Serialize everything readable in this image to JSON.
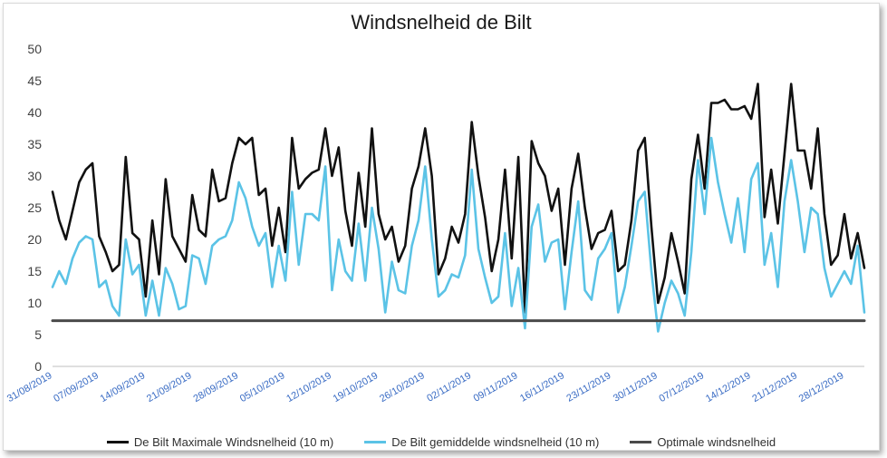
{
  "chart_data": {
    "type": "line",
    "title": "Windsnelheid de Bilt",
    "xlabel": "",
    "ylabel": "",
    "ylim": [
      0,
      50
    ],
    "yticks": [
      "0",
      "5",
      "10",
      "15",
      "20",
      "25",
      "30",
      "35",
      "40",
      "45",
      "50"
    ],
    "xticks": [
      "31/08/2019",
      "07/09/2019",
      "14/09/2019",
      "21/09/2019",
      "28/09/2019",
      "05/10/2019",
      "12/10/2019",
      "19/10/2019",
      "26/10/2019",
      "02/11/2019",
      "09/11/2019",
      "16/11/2019",
      "23/11/2019",
      "30/11/2019",
      "07/12/2019",
      "14/12/2019",
      "21/12/2019",
      "28/12/2019"
    ],
    "x_range": [
      "2019-08-31",
      "2019-12-31"
    ],
    "grid": false,
    "legend_position": "bottom",
    "series": [
      {
        "name": "De Bilt Maximale Windsnelheid (10 m)",
        "color": "#111111",
        "values": [
          27.5,
          23,
          20,
          24.5,
          29,
          31,
          32,
          20.5,
          18,
          15,
          16,
          33,
          21,
          20,
          11,
          23,
          14.5,
          29.5,
          20.5,
          18.5,
          16.5,
          27,
          21.5,
          20.5,
          31,
          26,
          26.5,
          32,
          36,
          35,
          36,
          27,
          28,
          19,
          25,
          18,
          36,
          28,
          29.5,
          30.5,
          31,
          37.5,
          30,
          34.5,
          24.5,
          19,
          30.5,
          22,
          37.5,
          24,
          20,
          22,
          16.5,
          19,
          28,
          31.5,
          37.5,
          30,
          14.5,
          17,
          22,
          19.5,
          24,
          38.5,
          30,
          23.5,
          15,
          20,
          31,
          17,
          33,
          8.5,
          35.5,
          32,
          30,
          24.5,
          28,
          16,
          28,
          33.5,
          25,
          18.5,
          21,
          21.5,
          24.5,
          15,
          16,
          23,
          34,
          36,
          22,
          10,
          14,
          21,
          16.5,
          11.5,
          29.5,
          36.5,
          28,
          41.5,
          41.5,
          42,
          40.5,
          40.5,
          41,
          39,
          44.5,
          23.5,
          31,
          22.5,
          33.5,
          44.5,
          34,
          34,
          28,
          37.5,
          24,
          16,
          17.5,
          24,
          17,
          21,
          15.5
        ]
      },
      {
        "name": "De Bilt gemiddelde windsnelheid (10 m)",
        "color": "#5bc3e6",
        "values": [
          12.5,
          15,
          13,
          17,
          19.5,
          20.5,
          20,
          12.5,
          13.5,
          9.5,
          8,
          20,
          14.5,
          16,
          8,
          13.5,
          8,
          15.5,
          13,
          9,
          9.5,
          17.5,
          17,
          13,
          19,
          20,
          20.5,
          23,
          29,
          26.5,
          22,
          19,
          21,
          12.5,
          19,
          13.5,
          27.5,
          16,
          24,
          24,
          23,
          31.5,
          12,
          20,
          15,
          13.5,
          22.5,
          13.5,
          25,
          18.5,
          8.5,
          16.5,
          12,
          11.5,
          19,
          23,
          31.5,
          20,
          11,
          12,
          14.5,
          14,
          17.5,
          31,
          18.5,
          14,
          10,
          11,
          21,
          9.5,
          15.5,
          6,
          22,
          25.5,
          16.5,
          19.5,
          20,
          9,
          18,
          26,
          12,
          10.5,
          17,
          18.5,
          21,
          8.5,
          12.5,
          19,
          26,
          27.5,
          15,
          5.5,
          10,
          13.5,
          11.5,
          8,
          18,
          32.5,
          24,
          36,
          29,
          24,
          19.5,
          26.5,
          18,
          29.5,
          32,
          16,
          21,
          12.5,
          26,
          32.5,
          26,
          18,
          25,
          24,
          15.5,
          11,
          13,
          15,
          13,
          19,
          8.5
        ]
      },
      {
        "name": "Optimale windsnelheid",
        "color": "#4a4a4a",
        "values": [
          7.2,
          7.2
        ]
      }
    ]
  }
}
